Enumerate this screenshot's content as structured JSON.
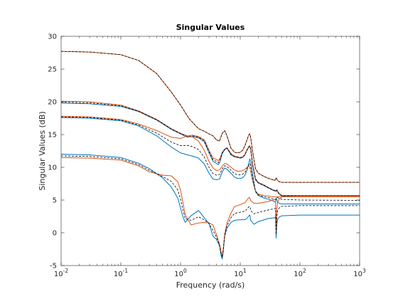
{
  "chart_data": {
    "type": "line",
    "title": "Singular Values",
    "xlabel": "Frequency (rad/s)",
    "ylabel": "Singular Values (dB)",
    "xscale": "log",
    "xlim": [
      0.01,
      1000
    ],
    "ylim": [
      -5,
      30
    ],
    "x_ticks": [
      {
        "value": 0.01,
        "base": "10",
        "exp": "-2"
      },
      {
        "value": 0.1,
        "base": "10",
        "exp": "-1"
      },
      {
        "value": 1,
        "base": "10",
        "exp": "0"
      },
      {
        "value": 10,
        "base": "10",
        "exp": "1"
      },
      {
        "value": 100,
        "base": "10",
        "exp": "2"
      },
      {
        "value": 1000,
        "base": "10",
        "exp": "3"
      }
    ],
    "y_ticks": [
      "-5",
      "0",
      "5",
      "10",
      "15",
      "20",
      "25",
      "30"
    ],
    "grid": false,
    "box": true,
    "colors": {
      "blue": "#0072BD",
      "orange": "#D95319",
      "black": "#000000"
    },
    "series": [
      {
        "color": "#D95319",
        "x": [
          0.01,
          0.03,
          0.1,
          0.2,
          0.4,
          0.7,
          1,
          1.4,
          2,
          2.5,
          3,
          3.5,
          4,
          4.5,
          5,
          5.5,
          6,
          7,
          8,
          9,
          10,
          11,
          12,
          13,
          14,
          14.5,
          15,
          16,
          18,
          20,
          25,
          30,
          35,
          38,
          39,
          40,
          41,
          42,
          45,
          50,
          100,
          1000
        ],
        "y": [
          27.7,
          27.6,
          27.2,
          26.3,
          24.3,
          21.5,
          19.5,
          17.4,
          15.9,
          15.5,
          15.1,
          14.8,
          14.2,
          14.0,
          15.2,
          15.6,
          14.8,
          12.9,
          12.3,
          12.2,
          12.3,
          12.6,
          13.3,
          14.2,
          15.0,
          15.1,
          14.5,
          12.6,
          9.8,
          9.1,
          8.6,
          8.3,
          8.1,
          8.0,
          8.2,
          8.4,
          8.2,
          8.0,
          7.8,
          7.7,
          7.7,
          7.7
        ]
      },
      {
        "color": "#000000",
        "dash": "3,2",
        "x": [
          0.01,
          0.03,
          0.1,
          0.2,
          0.4,
          0.7,
          1,
          1.4,
          2,
          2.5,
          3,
          3.5,
          4,
          4.5,
          5,
          5.5,
          6,
          7,
          8,
          9,
          10,
          11,
          12,
          13,
          14,
          14.5,
          15,
          16,
          18,
          20,
          25,
          30,
          35,
          38,
          39,
          40,
          41,
          42,
          45,
          50,
          100,
          1000
        ],
        "y": [
          27.7,
          27.6,
          27.2,
          26.3,
          24.3,
          21.5,
          19.5,
          17.4,
          15.9,
          15.5,
          15.1,
          14.8,
          14.2,
          14.0,
          15.2,
          15.6,
          14.8,
          12.9,
          12.3,
          12.2,
          12.3,
          12.6,
          13.3,
          14.2,
          15.0,
          15.1,
          14.5,
          12.6,
          9.8,
          9.1,
          8.6,
          8.3,
          8.1,
          8.0,
          8.2,
          8.4,
          8.2,
          8.0,
          7.8,
          7.7,
          7.7,
          7.7
        ]
      },
      {
        "color": "#0072BD",
        "x": [
          0.01,
          0.03,
          0.1,
          0.2,
          0.4,
          0.7,
          1,
          1.3,
          1.6,
          2,
          2.5,
          3,
          3.5,
          4,
          4.3,
          4.6,
          5,
          5.5,
          6,
          7,
          8,
          9,
          10,
          11,
          12,
          13,
          14,
          14.5,
          15,
          16,
          18,
          20,
          25,
          30,
          35,
          40,
          41,
          42,
          45,
          50,
          100,
          1000
        ],
        "y": [
          19.8,
          19.7,
          19.3,
          18.5,
          17.2,
          15.8,
          15.1,
          14.6,
          14.7,
          14.5,
          13.9,
          12.2,
          10.9,
          10.6,
          10.4,
          10.9,
          12.1,
          12.7,
          12.9,
          11.9,
          11.6,
          11.5,
          11.4,
          11.5,
          11.9,
          12.6,
          13.1,
          13.2,
          12.7,
          10.5,
          8.1,
          7.6,
          7.2,
          6.8,
          6.5,
          6.3,
          6.5,
          6.3,
          5.9,
          5.6,
          5.6,
          5.6
        ]
      },
      {
        "color": "#D95319",
        "x": [
          0.01,
          0.03,
          0.1,
          0.2,
          0.4,
          0.7,
          1,
          1.3,
          1.6,
          2,
          2.5,
          3,
          3.5,
          4,
          4.3,
          4.6,
          5,
          5.5,
          6,
          7,
          8,
          9,
          10,
          11,
          12,
          13,
          14,
          14.5,
          15,
          16,
          18,
          20,
          25,
          30,
          35,
          40,
          41,
          42,
          45,
          50,
          100,
          1000
        ],
        "y": [
          20.1,
          20.0,
          19.5,
          18.6,
          17.3,
          15.9,
          15.2,
          14.8,
          14.9,
          14.7,
          14.2,
          12.6,
          11.4,
          11.2,
          11.0,
          11.4,
          12.3,
          12.8,
          13.0,
          12.1,
          11.7,
          11.6,
          11.5,
          11.6,
          12.0,
          12.7,
          13.2,
          13.3,
          12.9,
          10.7,
          8.3,
          7.7,
          7.3,
          6.9,
          6.6,
          6.4,
          6.6,
          6.4,
          6.0,
          5.7,
          5.7,
          5.7
        ]
      },
      {
        "color": "#000000",
        "dash": "3,2",
        "x": [
          0.01,
          0.03,
          0.1,
          0.2,
          0.4,
          0.7,
          1,
          1.3,
          1.6,
          2,
          2.5,
          3,
          3.5,
          4,
          4.3,
          4.6,
          5,
          5.5,
          6,
          7,
          8,
          9,
          10,
          11,
          12,
          13,
          14,
          14.5,
          15,
          16,
          18,
          20,
          25,
          30,
          35,
          40,
          41,
          42,
          45,
          50,
          100,
          1000
        ],
        "y": [
          19.95,
          19.85,
          19.4,
          18.55,
          17.25,
          15.85,
          15.15,
          14.7,
          14.8,
          14.6,
          14.05,
          12.4,
          11.15,
          10.9,
          10.7,
          11.15,
          12.2,
          12.75,
          12.95,
          12.0,
          11.65,
          11.55,
          11.45,
          11.55,
          11.95,
          12.65,
          13.15,
          13.25,
          12.8,
          10.6,
          8.2,
          7.65,
          7.25,
          6.85,
          6.55,
          6.35,
          6.55,
          6.35,
          5.95,
          5.65,
          5.65,
          5.65
        ]
      },
      {
        "color": "#0072BD",
        "x": [
          0.01,
          0.03,
          0.1,
          0.2,
          0.4,
          0.7,
          1,
          1.3,
          1.6,
          2,
          2.5,
          3,
          3.5,
          4,
          4.5,
          5,
          5.5,
          6,
          7,
          8,
          9,
          10,
          11,
          12,
          13,
          14,
          14.5,
          15,
          16,
          18,
          20,
          25,
          30,
          35,
          38,
          39,
          40,
          41,
          42,
          45,
          50,
          100,
          1000
        ],
        "y": [
          17.6,
          17.5,
          17.1,
          16.3,
          14.8,
          13.1,
          12.2,
          11.9,
          11.7,
          11.4,
          10.5,
          9.1,
          8.2,
          8.1,
          8.2,
          9.3,
          9.9,
          9.7,
          9.1,
          8.5,
          8.3,
          8.3,
          8.4,
          8.8,
          9.6,
          10.7,
          11.3,
          10.8,
          9.2,
          6.3,
          5.7,
          5.3,
          5.1,
          4.9,
          4.7,
          4.9,
          5.3,
          5.0,
          4.7,
          4.5,
          4.4,
          4.4,
          4.4
        ]
      },
      {
        "color": "#D95319",
        "x": [
          0.01,
          0.03,
          0.1,
          0.2,
          0.4,
          0.7,
          1,
          1.3,
          1.6,
          2,
          2.5,
          3,
          3.5,
          4,
          4.5,
          5,
          5.5,
          6,
          7,
          8,
          9,
          10,
          11,
          12,
          13,
          14,
          14.5,
          15,
          16,
          18,
          20,
          25,
          30,
          35,
          40,
          41,
          42,
          45,
          50,
          100,
          1000
        ],
        "y": [
          17.8,
          17.7,
          17.3,
          16.6,
          15.6,
          14.6,
          14.4,
          14.8,
          14.6,
          14.0,
          12.6,
          10.9,
          9.9,
          9.5,
          9.6,
          10.2,
          10.6,
          10.5,
          10.0,
          9.6,
          9.4,
          9.4,
          9.5,
          9.7,
          10.0,
          10.2,
          9.9,
          9.3,
          8.0,
          6.4,
          5.9,
          5.7,
          5.6,
          5.5,
          5.5,
          5.4,
          5.5,
          5.5,
          5.5,
          5.5,
          5.5
        ]
      },
      {
        "color": "#000000",
        "dash": "3,2",
        "x": [
          0.01,
          0.03,
          0.1,
          0.2,
          0.4,
          0.7,
          1,
          1.3,
          1.6,
          2,
          2.5,
          3,
          3.5,
          4,
          4.5,
          5,
          5.5,
          6,
          7,
          8,
          9,
          10,
          11,
          12,
          13,
          14,
          14.5,
          15,
          16,
          18,
          20,
          25,
          30,
          35,
          40,
          41,
          42,
          45,
          50,
          100,
          1000
        ],
        "y": [
          17.7,
          17.6,
          17.2,
          16.45,
          15.2,
          13.85,
          13.3,
          13.35,
          13.15,
          12.7,
          11.55,
          10.0,
          9.05,
          8.8,
          8.9,
          9.75,
          10.25,
          10.1,
          9.55,
          9.05,
          8.85,
          8.85,
          8.95,
          9.25,
          9.8,
          10.45,
          10.6,
          10.05,
          8.6,
          6.35,
          5.8,
          5.5,
          5.35,
          5.2,
          5.1,
          5.15,
          5.4,
          5.25,
          5.1,
          5.0,
          4.95
        ]
      },
      {
        "color": "#0072BD",
        "x": [
          0.01,
          0.03,
          0.1,
          0.2,
          0.3,
          0.5,
          0.7,
          0.9,
          1.0,
          1.1,
          1.2,
          1.5,
          2,
          2.5,
          3,
          3.5,
          4,
          4.5,
          4.8,
          5.0,
          5.2,
          5.5,
          6,
          7,
          8,
          10,
          12,
          13,
          14,
          14.5,
          15,
          17,
          20,
          30,
          38,
          39,
          40,
          41,
          42,
          45,
          50,
          100,
          1000
        ],
        "y": [
          12.0,
          11.9,
          11.5,
          10.6,
          9.8,
          8.4,
          7.0,
          5.3,
          3.8,
          2.4,
          1.6,
          2.6,
          3.4,
          2.3,
          1.4,
          -0.5,
          -1.0,
          -2.0,
          -3.5,
          -4.0,
          -2.8,
          -0.5,
          0.7,
          1.6,
          1.9,
          2.0,
          2.0,
          2.2,
          2.6,
          2.7,
          1.9,
          1.3,
          1.7,
          2.2,
          2.3,
          2.5,
          -0.8,
          1.2,
          2.0,
          2.4,
          2.6,
          2.7,
          2.7
        ]
      },
      {
        "color": "#D95319",
        "x": [
          0.01,
          0.03,
          0.1,
          0.2,
          0.3,
          0.5,
          0.7,
          0.9,
          1.0,
          1.1,
          1.2,
          1.5,
          2,
          2.5,
          3,
          3.5,
          4,
          4.5,
          4.8,
          5.0,
          5.2,
          5.5,
          6,
          7,
          8,
          10,
          12,
          13,
          14,
          14.5,
          15,
          17,
          20,
          30,
          38,
          39,
          40,
          41,
          42,
          45,
          50,
          100,
          1000
        ],
        "y": [
          11.5,
          11.4,
          11.1,
          10.2,
          9.3,
          8.8,
          8.7,
          7.8,
          6.5,
          4.6,
          2.7,
          1.2,
          1.5,
          1.6,
          1.5,
          1.2,
          -0.3,
          -1.7,
          -3.0,
          -3.5,
          -2.4,
          -0.2,
          1.5,
          3.0,
          4.0,
          4.3,
          4.6,
          5.0,
          5.4,
          5.3,
          4.9,
          4.5,
          4.5,
          4.8,
          5.1,
          5.0,
          0.3,
          3.5,
          4.6,
          5.2,
          5.5,
          5.6,
          5.6
        ]
      },
      {
        "color": "#000000",
        "dash": "3,2",
        "x": [
          0.01,
          0.03,
          0.1,
          0.2,
          0.3,
          0.5,
          0.7,
          0.9,
          1.0,
          1.1,
          1.2,
          1.5,
          2,
          2.5,
          3,
          3.5,
          4,
          4.5,
          4.8,
          5.0,
          5.2,
          5.5,
          6,
          7,
          8,
          10,
          12,
          13,
          14,
          14.5,
          15,
          17,
          20,
          30,
          38,
          39,
          40,
          41,
          42,
          45,
          50,
          100,
          1000
        ],
        "y": [
          11.75,
          11.65,
          11.3,
          10.4,
          9.55,
          8.6,
          7.85,
          6.55,
          5.15,
          3.5,
          2.15,
          1.9,
          2.45,
          1.95,
          1.45,
          0.35,
          -0.65,
          -1.85,
          -3.25,
          -3.75,
          -2.6,
          -0.35,
          1.1,
          2.3,
          2.95,
          3.15,
          3.3,
          3.6,
          4.0,
          4.0,
          3.4,
          2.9,
          3.1,
          3.5,
          3.7,
          3.75,
          -0.25,
          2.35,
          3.3,
          3.8,
          4.05,
          4.15,
          4.15
        ]
      }
    ]
  }
}
